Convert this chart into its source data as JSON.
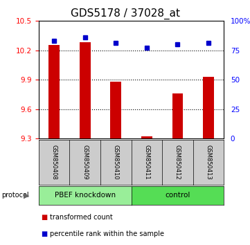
{
  "title": "GDS5178 / 37028_at",
  "samples": [
    "GSM850408",
    "GSM850409",
    "GSM850410",
    "GSM850411",
    "GSM850412",
    "GSM850413"
  ],
  "transformed_count": [
    10.25,
    10.28,
    9.88,
    9.32,
    9.76,
    9.93
  ],
  "percentile_rank": [
    83,
    86,
    81,
    77,
    80,
    81
  ],
  "ylim_left": [
    9.3,
    10.5
  ],
  "ylim_right": [
    0,
    100
  ],
  "yticks_left": [
    9.3,
    9.6,
    9.9,
    10.2,
    10.5
  ],
  "yticks_right": [
    0,
    25,
    50,
    75,
    100
  ],
  "ytick_labels_left": [
    "9.3",
    "9.6",
    "9.9",
    "10.2",
    "10.5"
  ],
  "ytick_labels_right": [
    "0",
    "25",
    "50",
    "75",
    "100%"
  ],
  "bar_color": "#cc0000",
  "dot_color": "#0000cc",
  "groups": [
    {
      "label": "PBEF knockdown",
      "start": 0,
      "end": 2,
      "color": "#99ee99"
    },
    {
      "label": "control",
      "start": 3,
      "end": 5,
      "color": "#55dd55"
    }
  ],
  "sample_box_color": "#cccccc",
  "protocol_label": "protocol",
  "legend_items": [
    {
      "label": "transformed count",
      "color": "#cc0000"
    },
    {
      "label": "percentile rank within the sample",
      "color": "#0000cc"
    }
  ],
  "title_fontsize": 11,
  "bar_width": 0.35,
  "dot_size": 25,
  "bg_color": "#ffffff"
}
